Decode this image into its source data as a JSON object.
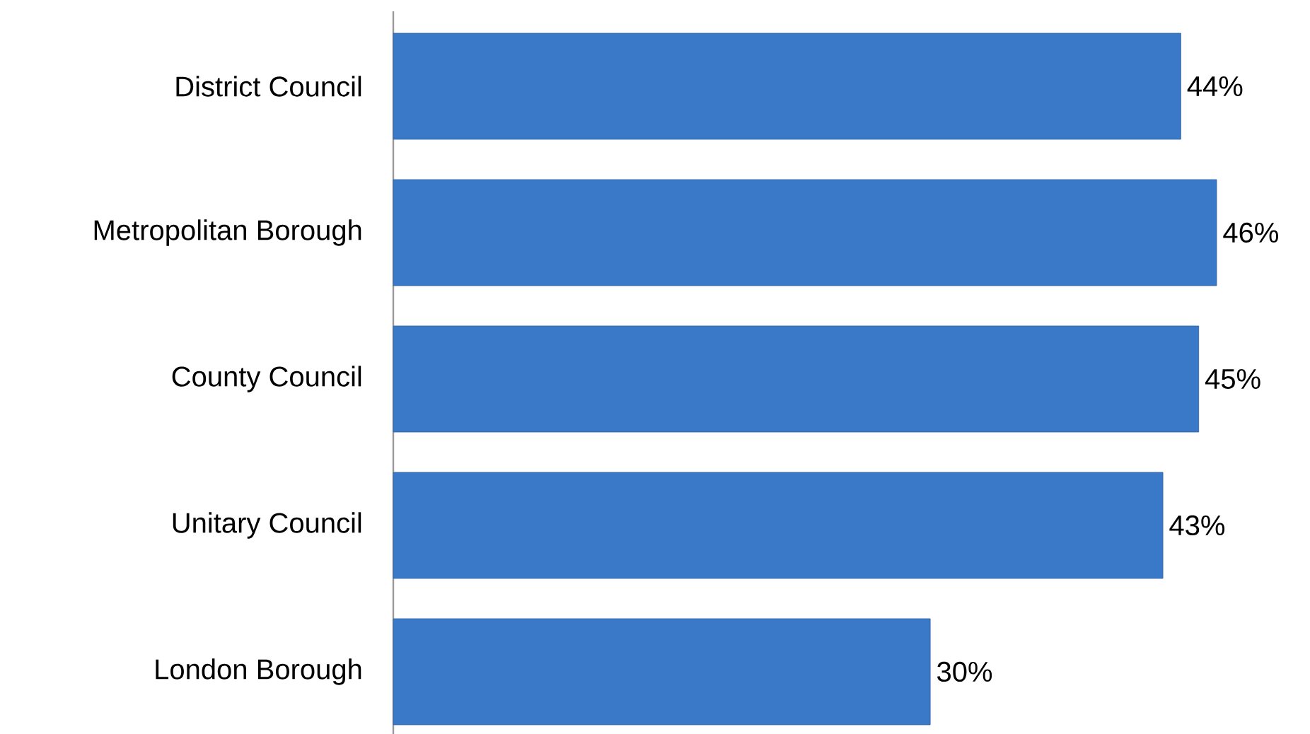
{
  "chart_data": {
    "type": "bar",
    "orientation": "horizontal",
    "categories": [
      "District Council",
      "Metropolitan Borough",
      "County Council",
      "Unitary Council",
      "London Borough"
    ],
    "values": [
      44,
      46,
      45,
      43,
      30
    ],
    "value_labels": [
      "44%",
      "46%",
      "45%",
      "43%",
      "30%"
    ],
    "color": "#3a78c8",
    "tick_labels": "y"
  }
}
